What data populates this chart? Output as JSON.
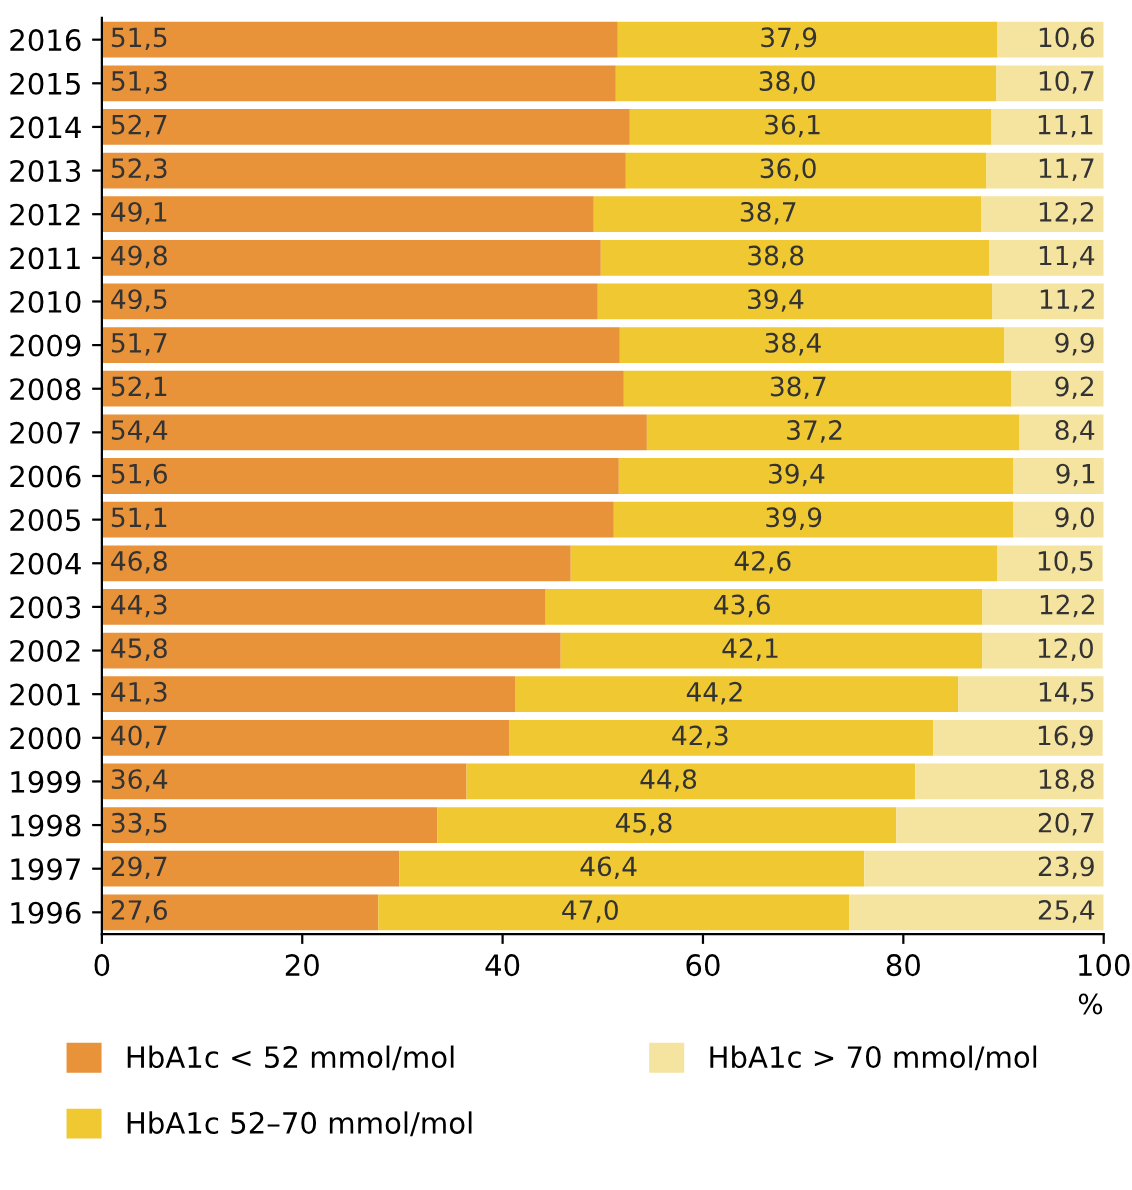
{
  "chart_data": {
    "type": "bar",
    "orientation": "horizontal",
    "stacked": true,
    "xlabel": "%",
    "categories": [
      "2016",
      "2015",
      "2014",
      "2013",
      "2012",
      "2011",
      "2010",
      "2009",
      "2008",
      "2007",
      "2006",
      "2005",
      "2004",
      "2003",
      "2002",
      "2001",
      "2000",
      "1999",
      "1998",
      "1997",
      "1996"
    ],
    "series": [
      {
        "name": "HbA1c < 52 mmol/mol",
        "color": "#e8923a",
        "values": [
          51.5,
          51.3,
          52.7,
          52.3,
          49.1,
          49.8,
          49.5,
          51.7,
          52.1,
          54.4,
          51.6,
          51.1,
          46.8,
          44.3,
          45.8,
          41.3,
          40.7,
          36.4,
          33.5,
          29.7,
          27.6
        ],
        "value_labels": [
          "51,5",
          "51,3",
          "52,7",
          "52,3",
          "49,1",
          "49,8",
          "49,5",
          "51,7",
          "52,1",
          "54,4",
          "51,6",
          "51,1",
          "46,8",
          "44,3",
          "45,8",
          "41,3",
          "40,7",
          "36,4",
          "33,5",
          "29,7",
          "27,6"
        ]
      },
      {
        "name": "HbA1c 52–70 mmol/mol",
        "color": "#f0c832",
        "values": [
          37.9,
          38.0,
          36.1,
          36.0,
          38.7,
          38.8,
          39.4,
          38.4,
          38.7,
          37.2,
          39.4,
          39.9,
          42.6,
          43.6,
          42.1,
          44.2,
          42.3,
          44.8,
          45.8,
          46.4,
          47.0
        ],
        "value_labels": [
          "37,9",
          "38,0",
          "36,1",
          "36,0",
          "38,7",
          "38,8",
          "39,4",
          "38,4",
          "38,7",
          "37,2",
          "39,4",
          "39,9",
          "42,6",
          "43,6",
          "42,1",
          "44,2",
          "42,3",
          "44,8",
          "45,8",
          "46,4",
          "47,0"
        ]
      },
      {
        "name": "HbA1c > 70 mmol/mol",
        "color": "#f5e3a0",
        "values": [
          10.6,
          10.7,
          11.1,
          11.7,
          12.2,
          11.4,
          11.2,
          9.9,
          9.2,
          8.4,
          9.1,
          9.0,
          10.5,
          12.2,
          12.0,
          14.5,
          16.9,
          18.8,
          20.7,
          23.9,
          25.4
        ],
        "value_labels": [
          "10,6",
          "10,7",
          "11,1",
          "11,7",
          "12,2",
          "11,4",
          "11,2",
          "9,9",
          "9,2",
          "8,4",
          "9,1",
          "9,0",
          "10,5",
          "12,2",
          "12,0",
          "14,5",
          "16,9",
          "18,8",
          "20,7",
          "23,9",
          "25,4"
        ]
      }
    ],
    "xlim": [
      0,
      100
    ],
    "xticks": [
      0,
      20,
      40,
      60,
      80,
      100
    ],
    "grid": false,
    "legend": "bottom"
  }
}
